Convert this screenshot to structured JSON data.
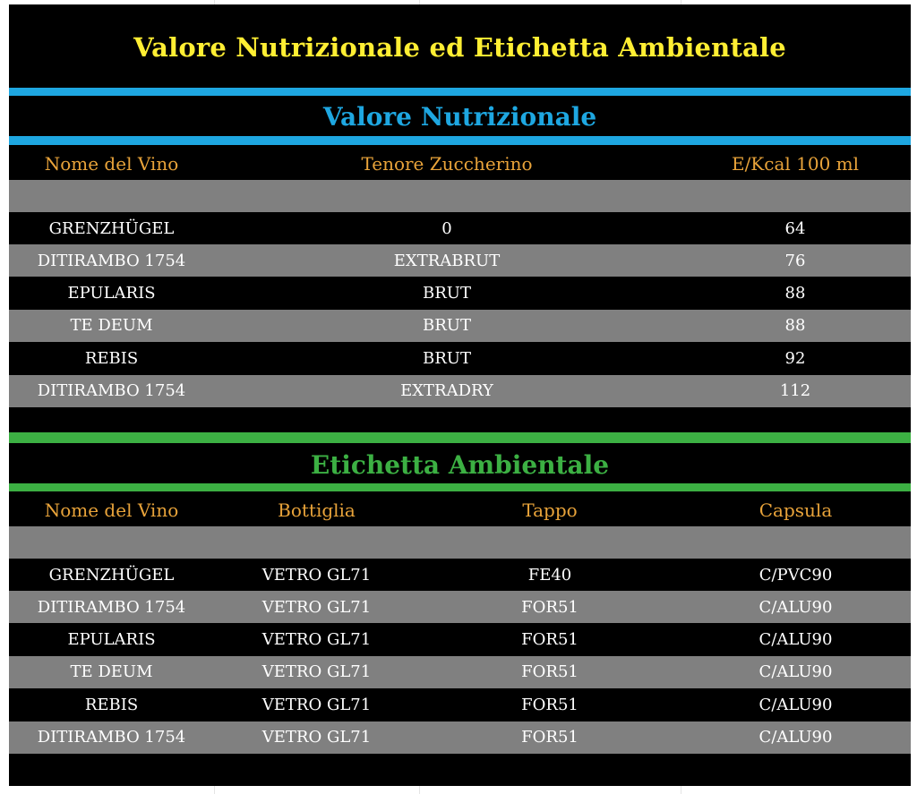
{
  "title": "Valore Nutrizionale ed Etichetta Ambientale",
  "colors": {
    "title": "#ffee33",
    "nutrition_accent": "#1ea7e1",
    "environment_accent": "#3cb043",
    "header_text": "#e8a33a",
    "gray_row": "#808080"
  },
  "nutrition": {
    "title": "Valore Nutrizionale",
    "headers": [
      "Nome del Vino",
      "Tenore Zuccherino",
      "E/Kcal 100 ml"
    ],
    "rows": [
      [
        "GRENZHÜGEL",
        "0",
        "64"
      ],
      [
        "DITIRAMBO 1754",
        "EXTRABRUT",
        "76"
      ],
      [
        "EPULARIS",
        "BRUT",
        "88"
      ],
      [
        "TE DEUM",
        "BRUT",
        "88"
      ],
      [
        "REBIS",
        "BRUT",
        "92"
      ],
      [
        "DITIRAMBO 1754",
        "EXTRADRY",
        "112"
      ]
    ]
  },
  "environment": {
    "title": "Etichetta Ambientale",
    "headers": [
      "Nome del Vino",
      "Bottiglia",
      "Tappo",
      "Capsula"
    ],
    "rows": [
      [
        "GRENZHÜGEL",
        "VETRO GL71",
        "FE40",
        "C/PVC90"
      ],
      [
        "DITIRAMBO 1754",
        "VETRO GL71",
        "FOR51",
        "C/ALU90"
      ],
      [
        "EPULARIS",
        "VETRO GL71",
        "FOR51",
        "C/ALU90"
      ],
      [
        "TE DEUM",
        "VETRO GL71",
        "FOR51",
        "C/ALU90"
      ],
      [
        "REBIS",
        "VETRO GL71",
        "FOR51",
        "C/ALU90"
      ],
      [
        "DITIRAMBO 1754",
        "VETRO GL71",
        "FOR51",
        "C/ALU90"
      ]
    ]
  }
}
